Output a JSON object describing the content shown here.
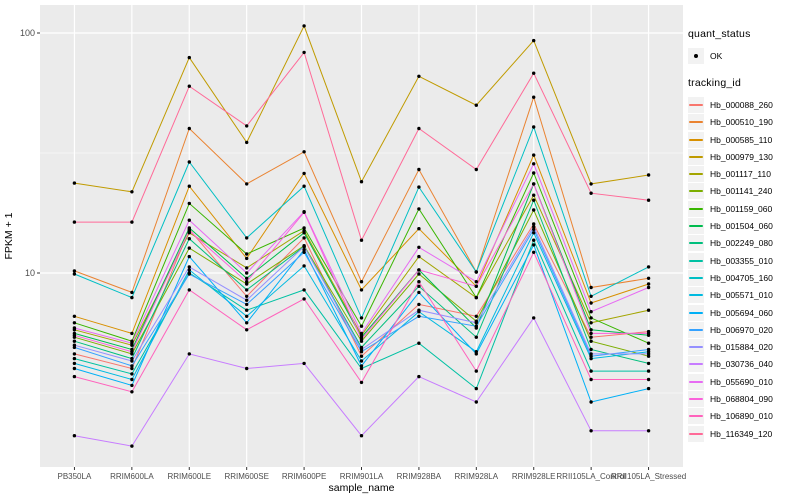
{
  "figure": {
    "panel_bg": "#EBEBEB",
    "grid_color": "#FFFFFF",
    "axis_text_color": "#4D4D4D",
    "tick_mark_color": "#333333",
    "point_color": "#000000"
  },
  "chart_data": {
    "type": "line",
    "title": "",
    "xlabel": "sample_name",
    "ylabel": "FPKM + 1",
    "y_scale": "log10",
    "ylim": [
      1.56,
      131
    ],
    "y_ticks": [
      100,
      10
    ],
    "y_tick_labels": [
      "100",
      "10"
    ],
    "y_minor_gridlines": [
      31.62,
      3.162
    ],
    "grid": true,
    "legend_position": "right",
    "categories": [
      "PB350LA",
      "RRIM600LA",
      "RRIM600LE",
      "RRIM600SE",
      "RRIM600PE",
      "RRIM901LA",
      "RRIM928BA",
      "RRIM928LA",
      "RRIM928LE",
      "RRII105LA_Control",
      "RRII105LA_Stressed"
    ],
    "series": [
      {
        "name": "Hb_000088_260",
        "color": "#F8766D",
        "values": [
          4.6,
          4.0,
          15.2,
          8.0,
          14.0,
          4.5,
          7.4,
          6.6,
          16.0,
          5.4,
          5.7
        ]
      },
      {
        "name": "Hb_000510_190",
        "color": "#EA8331",
        "values": [
          10.2,
          8.3,
          40,
          23.5,
          32,
          9.2,
          27,
          10.1,
          54,
          8.7,
          9.5
        ]
      },
      {
        "name": "Hb_000585_110",
        "color": "#D89000",
        "values": [
          6.6,
          5.6,
          23,
          11.5,
          26,
          8.5,
          15.3,
          8.8,
          31,
          7.5,
          9.0
        ]
      },
      {
        "name": "Hb_000979_130",
        "color": "#C09B00",
        "values": [
          23.7,
          21.8,
          79,
          35,
          107,
          24,
          66,
          50,
          93,
          23.5,
          25.6
        ]
      },
      {
        "name": "Hb_001117_110",
        "color": "#A3A500",
        "values": [
          5.8,
          5.0,
          14.7,
          10.5,
          15.0,
          5.5,
          11.7,
          7.9,
          21.1,
          6.2,
          7.0
        ]
      },
      {
        "name": "Hb_001141_240",
        "color": "#7CAE00",
        "values": [
          5.4,
          4.6,
          12.7,
          9.0,
          13.0,
          5.2,
          9.9,
          6.3,
          18.3,
          5.2,
          4.5
        ]
      },
      {
        "name": "Hb_001159_060",
        "color": "#39B600",
        "values": [
          6.2,
          5.2,
          19.5,
          12.0,
          15.4,
          6.0,
          18.5,
          7.9,
          26.1,
          6.5,
          5.1
        ]
      },
      {
        "name": "Hb_001504_060",
        "color": "#00BB4E",
        "values": [
          5.6,
          4.8,
          15.4,
          9.5,
          14.7,
          5.4,
          10.3,
          5.9,
          23.5,
          5.8,
          5.5
        ]
      },
      {
        "name": "Hb_002249_080",
        "color": "#00BF7D",
        "values": [
          5.2,
          4.4,
          13.9,
          8.5,
          12.9,
          4.9,
          8.8,
          5.4,
          20.1,
          4.8,
          4.2
        ]
      },
      {
        "name": "Hb_003355_010",
        "color": "#00C1A3",
        "values": [
          4.4,
          3.8,
          10.0,
          7.0,
          8.5,
          4.0,
          5.1,
          3.3,
          13.7,
          3.9,
          3.9
        ]
      },
      {
        "name": "Hb_004705_160",
        "color": "#00BFC4",
        "values": [
          9.9,
          7.9,
          29,
          14.0,
          23,
          6.5,
          22.8,
          10.1,
          40.6,
          8.0,
          10.6
        ]
      },
      {
        "name": "Hb_005571_010",
        "color": "#00BAE0",
        "values": [
          4.2,
          3.6,
          10.3,
          6.6,
          10.7,
          4.3,
          6.9,
          4.7,
          14.7,
          4.4,
          4.7
        ]
      },
      {
        "name": "Hb_005694_060",
        "color": "#00B0F6",
        "values": [
          4.0,
          3.4,
          11.7,
          6.2,
          12.5,
          4.1,
          8.3,
          4.6,
          13.1,
          2.9,
          3.3
        ]
      },
      {
        "name": "Hb_006970_020",
        "color": "#35A2FF",
        "values": [
          4.9,
          4.1,
          9.9,
          7.4,
          12.2,
          4.7,
          6.6,
          6.0,
          15.2,
          4.5,
          4.8
        ]
      },
      {
        "name": "Hb_015884_020",
        "color": "#9590FF",
        "values": [
          5.0,
          4.3,
          10.6,
          7.7,
          12.9,
          4.8,
          7.0,
          6.2,
          15.6,
          4.6,
          4.6
        ]
      },
      {
        "name": "Hb_030736_040",
        "color": "#C77CFF",
        "values": [
          2.1,
          1.9,
          4.6,
          4.0,
          4.2,
          2.1,
          3.7,
          2.9,
          6.5,
          2.2,
          2.2
        ]
      },
      {
        "name": "Hb_055690_010",
        "color": "#E76BF3",
        "values": [
          5.9,
          5.1,
          16.6,
          10.0,
          18.0,
          5.6,
          12.8,
          9.2,
          28.5,
          6.9,
          8.7
        ]
      },
      {
        "name": "Hb_068804_090",
        "color": "#FA62DB",
        "values": [
          5.5,
          4.7,
          15.0,
          9.2,
          17.9,
          5.3,
          10.3,
          8.8,
          23.5,
          5.6,
          5.6
        ]
      },
      {
        "name": "Hb_106890_010",
        "color": "#FF62BC",
        "values": [
          3.7,
          3.2,
          8.5,
          5.8,
          7.8,
          3.5,
          9.2,
          3.9,
          12.2,
          3.6,
          3.6
        ]
      },
      {
        "name": "Hb_116349_120",
        "color": "#FF6A98",
        "values": [
          16.3,
          16.3,
          60,
          41,
          83,
          13.7,
          40,
          27,
          68,
          21.5,
          20.1
        ]
      }
    ],
    "legend": {
      "quant_status_title": "quant_status",
      "quant_status_items": [
        {
          "label": "OK",
          "shape": "point"
        }
      ],
      "tracking_id_title": "tracking_id"
    }
  }
}
